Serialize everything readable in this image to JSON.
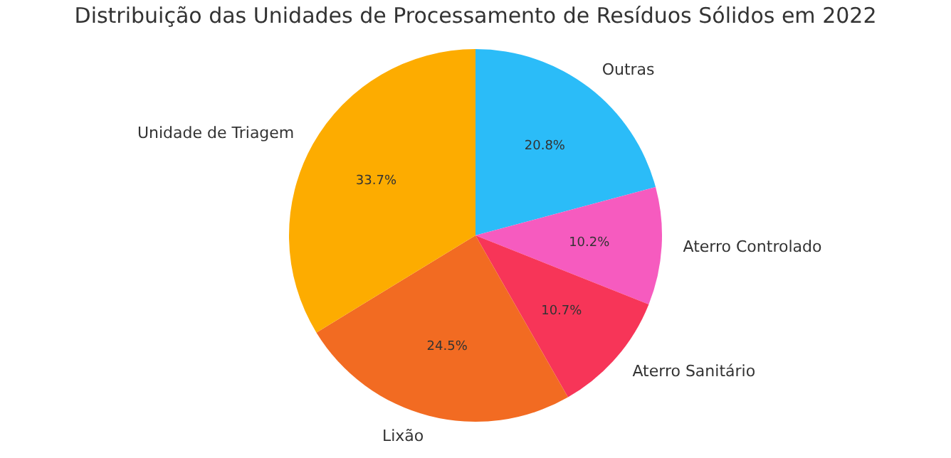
{
  "chart_data": {
    "type": "pie",
    "title": "Distribuição das Unidades de Processamento de Resíduos Sólidos em 2022",
    "categories": [
      "Outras",
      "Aterro Controlado",
      "Aterro Sanitário",
      "Lixão",
      "Unidade de Triagem"
    ],
    "values": [
      20.8,
      10.2,
      10.7,
      24.5,
      33.7
    ],
    "value_labels": [
      "20.8%",
      "10.2%",
      "10.7%",
      "24.5%",
      "33.7%"
    ],
    "colors": [
      "#2bbcf8",
      "#f65bbf",
      "#f73558",
      "#f26b22",
      "#fdac00"
    ],
    "legend": false
  }
}
